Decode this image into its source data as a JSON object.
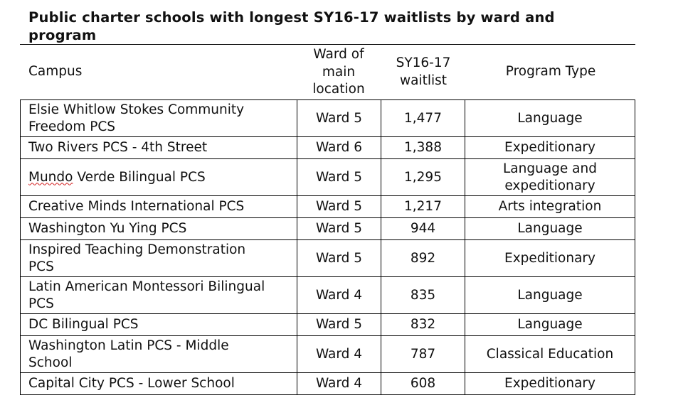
{
  "title": "Public charter schools with longest SY16-17 waitlists by ward and program",
  "headers": {
    "campus": "Campus",
    "ward": [
      "Ward of",
      "main",
      "location"
    ],
    "waitlist": [
      "SY16-17",
      "waitlist"
    ],
    "program": "Program Type"
  },
  "rows": [
    {
      "campus": [
        "Elsie Whitlow Stokes Community",
        "Freedom PCS"
      ],
      "ward": "Ward 5",
      "waitlist": "1,477",
      "program": [
        "Language"
      ]
    },
    {
      "campus": [
        "Two Rivers PCS - 4th Street"
      ],
      "ward": "Ward 6",
      "waitlist": "1,388",
      "program": [
        "Expeditionary"
      ]
    },
    {
      "campus": [
        "Mundo Verde Bilingual PCS"
      ],
      "ward": "Ward 5",
      "waitlist": "1,295",
      "program": [
        "Language and",
        "expeditionary"
      ]
    },
    {
      "campus": [
        "Creative Minds International PCS"
      ],
      "ward": "Ward 5",
      "waitlist": "1,217",
      "program": [
        "Arts integration"
      ]
    },
    {
      "campus": [
        "Washington Yu Ying PCS"
      ],
      "ward": "Ward 5",
      "waitlist": "944",
      "program": [
        "Language"
      ]
    },
    {
      "campus": [
        "Inspired Teaching Demonstration",
        "PCS"
      ],
      "ward": "Ward 5",
      "waitlist": "892",
      "program": [
        "Expeditionary"
      ]
    },
    {
      "campus": [
        "Latin American Montessori Bilingual",
        "PCS"
      ],
      "ward": "Ward 4",
      "waitlist": "835",
      "program": [
        "Language"
      ]
    },
    {
      "campus": [
        "DC Bilingual PCS"
      ],
      "ward": "Ward 5",
      "waitlist": "832",
      "program": [
        "Language"
      ]
    },
    {
      "campus": [
        "Washington Latin PCS - Middle",
        "School"
      ],
      "ward": "Ward 4",
      "waitlist": "787",
      "program": [
        "Classical Education"
      ]
    },
    {
      "campus": [
        "Capital City PCS - Lower School"
      ],
      "ward": "Ward 4",
      "waitlist": "608",
      "program": [
        "Expeditionary"
      ]
    }
  ]
}
